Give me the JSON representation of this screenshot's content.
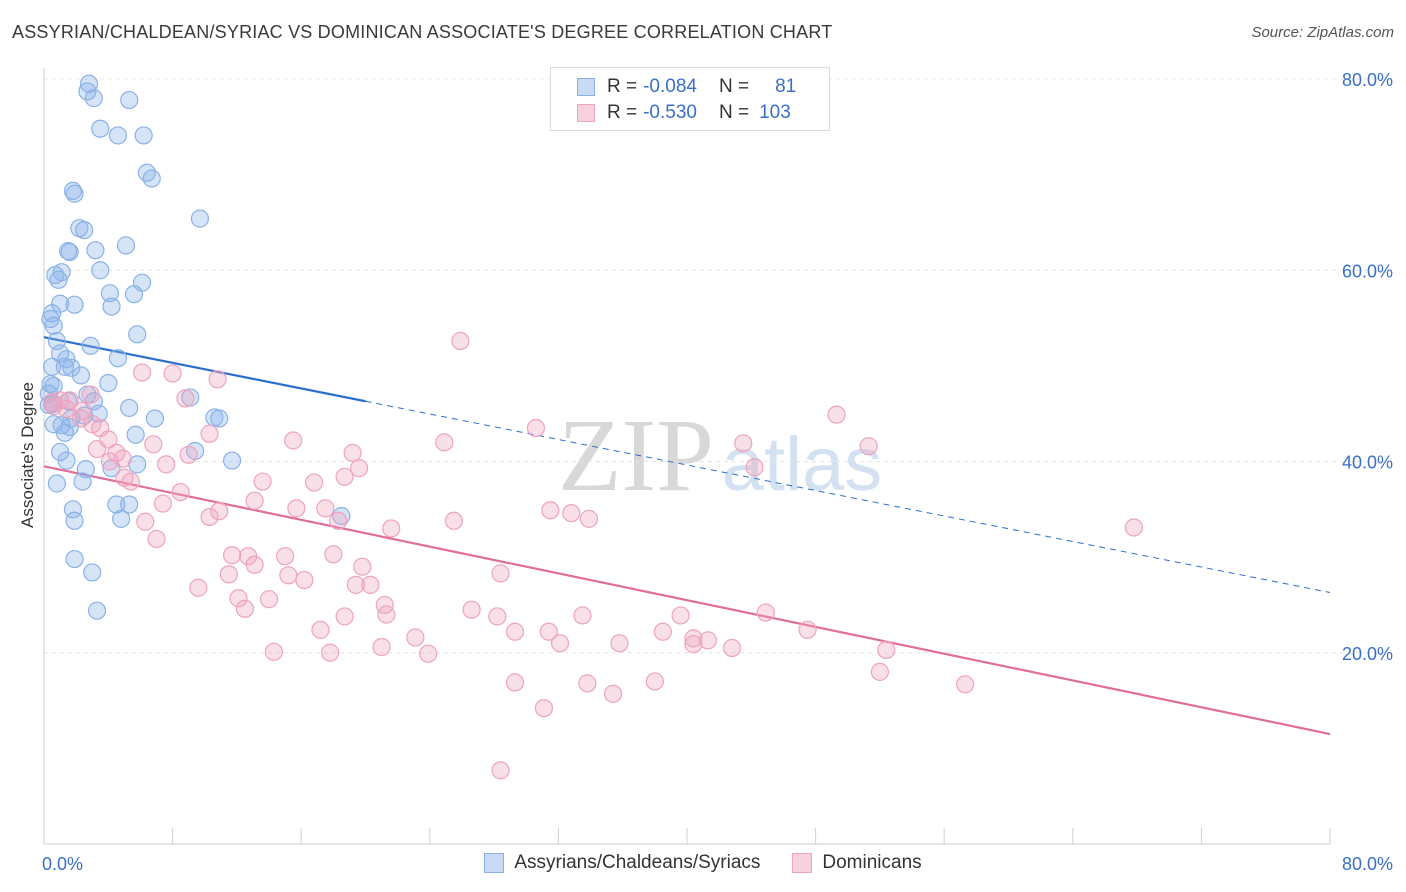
{
  "title": "ASSYRIAN/CHALDEAN/SYRIAC VS DOMINICAN ASSOCIATE'S DEGREE CORRELATION CHART",
  "source": "Source: ZipAtlas.com",
  "watermark": {
    "zip": "ZIP",
    "atlas": "atlas"
  },
  "legend_top": {
    "rows": [
      {
        "r_label": "R =",
        "r_value": "-0.084",
        "n_label": "N =",
        "n_value": "81",
        "color": "#8ab2e8",
        "fill": "#c9daf6"
      },
      {
        "r_label": "R =",
        "r_value": "-0.530",
        "n_label": "N =",
        "n_value": "103",
        "color": "#eea3be",
        "fill": "#f9d0de"
      }
    ]
  },
  "legend_bottom": [
    {
      "label": "Assyrians/Chaldeans/Syriacs",
      "color": "#8ab2e8",
      "fill": "#c9daf6"
    },
    {
      "label": "Dominicans",
      "color": "#eea3be",
      "fill": "#f9d0de"
    }
  ],
  "chart_data": {
    "type": "scatter",
    "title": "ASSYRIAN/CHALDEAN/SYRIAC VS DOMINICAN ASSOCIATE'S DEGREE CORRELATION CHART",
    "xlabel": "",
    "ylabel": "Associate's Degree",
    "xlim": [
      0,
      80
    ],
    "ylim": [
      0,
      80
    ],
    "x_tick_labels": [
      "0.0%",
      "80.0%"
    ],
    "y_ticks": [
      20,
      40,
      60,
      80
    ],
    "y_tick_labels": [
      "20.0%",
      "40.0%",
      "60.0%",
      "80.0%"
    ],
    "grid": true,
    "legend_position": "top-center",
    "series": [
      {
        "name": "Assyrians/Chaldeans/Syriacs",
        "color": "#8ab2e8",
        "line_color": "#2b6fce",
        "trend": {
          "x": [
            0,
            20
          ],
          "y": [
            53.0,
            46.3
          ],
          "dashed_to": [
            80,
            26.3
          ]
        },
        "points": [
          [
            2.8,
            79.5
          ],
          [
            2.7,
            78.7
          ],
          [
            3.1,
            78.0
          ],
          [
            5.3,
            77.8
          ],
          [
            3.5,
            74.8
          ],
          [
            4.6,
            74.1
          ],
          [
            6.2,
            74.1
          ],
          [
            6.4,
            70.2
          ],
          [
            6.7,
            69.6
          ],
          [
            1.8,
            68.3
          ],
          [
            1.9,
            68.0
          ],
          [
            9.7,
            65.4
          ],
          [
            2.2,
            64.4
          ],
          [
            2.5,
            64.2
          ],
          [
            5.1,
            62.6
          ],
          [
            1.5,
            62.0
          ],
          [
            1.6,
            61.9
          ],
          [
            3.2,
            62.1
          ],
          [
            3.5,
            60.0
          ],
          [
            0.7,
            59.5
          ],
          [
            1.1,
            59.8
          ],
          [
            0.9,
            59.0
          ],
          [
            6.1,
            58.7
          ],
          [
            4.1,
            57.6
          ],
          [
            5.6,
            57.5
          ],
          [
            1.0,
            56.5
          ],
          [
            1.9,
            56.4
          ],
          [
            4.2,
            56.2
          ],
          [
            0.5,
            55.5
          ],
          [
            0.4,
            54.9
          ],
          [
            0.6,
            54.2
          ],
          [
            5.8,
            53.3
          ],
          [
            0.8,
            52.6
          ],
          [
            2.9,
            52.1
          ],
          [
            1.0,
            51.3
          ],
          [
            1.4,
            50.7
          ],
          [
            4.6,
            50.8
          ],
          [
            0.5,
            49.9
          ],
          [
            1.3,
            49.9
          ],
          [
            1.7,
            49.8
          ],
          [
            2.3,
            49.0
          ],
          [
            0.4,
            48.1
          ],
          [
            4.0,
            48.2
          ],
          [
            0.6,
            47.9
          ],
          [
            2.7,
            47.0
          ],
          [
            9.1,
            46.7
          ],
          [
            3.1,
            46.3
          ],
          [
            0.5,
            46.0
          ],
          [
            5.3,
            45.6
          ],
          [
            3.4,
            45.0
          ],
          [
            1.7,
            44.5
          ],
          [
            2.5,
            44.8
          ],
          [
            10.6,
            44.6
          ],
          [
            6.9,
            44.5
          ],
          [
            10.9,
            44.5
          ],
          [
            1.1,
            43.8
          ],
          [
            1.6,
            43.6
          ],
          [
            1.3,
            43.0
          ],
          [
            5.7,
            42.8
          ],
          [
            9.4,
            41.1
          ],
          [
            1.0,
            41.0
          ],
          [
            4.2,
            39.3
          ],
          [
            1.4,
            40.1
          ],
          [
            11.7,
            40.1
          ],
          [
            5.8,
            39.7
          ],
          [
            2.6,
            39.2
          ],
          [
            0.8,
            37.7
          ],
          [
            2.4,
            37.9
          ],
          [
            4.5,
            35.5
          ],
          [
            5.3,
            35.5
          ],
          [
            1.8,
            35.0
          ],
          [
            4.8,
            34.0
          ],
          [
            18.5,
            34.3
          ],
          [
            1.9,
            33.8
          ],
          [
            1.9,
            29.8
          ],
          [
            3.0,
            28.4
          ],
          [
            3.3,
            24.4
          ],
          [
            0.3,
            47.1
          ],
          [
            0.3,
            45.9
          ],
          [
            1.5,
            46.3
          ],
          [
            0.6,
            43.9
          ]
        ]
      },
      {
        "name": "Dominicans",
        "color": "#eea3be",
        "line_color": "#e06d9a",
        "trend": {
          "x": [
            0,
            80
          ],
          "y": [
            39.5,
            11.5
          ]
        },
        "points": [
          [
            25.9,
            52.6
          ],
          [
            0.5,
            46.2
          ],
          [
            1.0,
            46.4
          ],
          [
            1.6,
            46.4
          ],
          [
            0.6,
            45.8
          ],
          [
            1.4,
            45.5
          ],
          [
            2.4,
            45.3
          ],
          [
            2.9,
            47.0
          ],
          [
            6.1,
            49.3
          ],
          [
            8.0,
            49.2
          ],
          [
            10.8,
            48.6
          ],
          [
            8.8,
            46.6
          ],
          [
            2.3,
            44.5
          ],
          [
            3.0,
            43.9
          ],
          [
            3.5,
            43.5
          ],
          [
            4.0,
            42.3
          ],
          [
            6.8,
            41.8
          ],
          [
            10.3,
            42.9
          ],
          [
            15.5,
            42.2
          ],
          [
            19.2,
            40.9
          ],
          [
            24.9,
            42.0
          ],
          [
            30.6,
            43.5
          ],
          [
            43.5,
            41.9
          ],
          [
            49.3,
            44.9
          ],
          [
            51.3,
            41.6
          ],
          [
            3.3,
            41.3
          ],
          [
            4.5,
            40.9
          ],
          [
            4.1,
            40.0
          ],
          [
            9.0,
            40.7
          ],
          [
            7.6,
            39.7
          ],
          [
            13.6,
            37.9
          ],
          [
            16.8,
            37.8
          ],
          [
            18.7,
            38.4
          ],
          [
            19.6,
            39.3
          ],
          [
            44.2,
            39.4
          ],
          [
            5.0,
            38.3
          ],
          [
            5.4,
            37.9
          ],
          [
            8.5,
            36.8
          ],
          [
            7.4,
            35.6
          ],
          [
            13.1,
            35.9
          ],
          [
            15.7,
            35.1
          ],
          [
            17.5,
            35.1
          ],
          [
            10.3,
            34.2
          ],
          [
            10.9,
            34.8
          ],
          [
            6.3,
            33.7
          ],
          [
            18.3,
            33.8
          ],
          [
            21.6,
            33.0
          ],
          [
            25.5,
            33.8
          ],
          [
            31.5,
            34.9
          ],
          [
            32.8,
            34.6
          ],
          [
            33.9,
            34.0
          ],
          [
            67.8,
            33.1
          ],
          [
            7.0,
            31.9
          ],
          [
            11.7,
            30.2
          ],
          [
            12.7,
            30.1
          ],
          [
            15.0,
            30.1
          ],
          [
            18.0,
            30.3
          ],
          [
            13.1,
            29.2
          ],
          [
            19.8,
            29.0
          ],
          [
            28.4,
            28.3
          ],
          [
            11.5,
            28.2
          ],
          [
            15.2,
            28.1
          ],
          [
            16.2,
            27.6
          ],
          [
            9.6,
            26.8
          ],
          [
            19.4,
            27.1
          ],
          [
            12.1,
            25.7
          ],
          [
            14.0,
            25.6
          ],
          [
            12.5,
            24.6
          ],
          [
            21.2,
            25.0
          ],
          [
            21.3,
            24.0
          ],
          [
            26.6,
            24.5
          ],
          [
            28.2,
            23.8
          ],
          [
            18.7,
            23.8
          ],
          [
            33.5,
            23.9
          ],
          [
            39.6,
            23.9
          ],
          [
            44.9,
            24.2
          ],
          [
            17.2,
            22.4
          ],
          [
            29.3,
            22.2
          ],
          [
            31.4,
            22.2
          ],
          [
            38.5,
            22.2
          ],
          [
            40.4,
            21.5
          ],
          [
            41.3,
            21.3
          ],
          [
            47.5,
            22.4
          ],
          [
            23.1,
            21.6
          ],
          [
            32.1,
            21.0
          ],
          [
            35.8,
            21.0
          ],
          [
            40.4,
            20.9
          ],
          [
            42.8,
            20.5
          ],
          [
            21.0,
            20.6
          ],
          [
            14.3,
            20.1
          ],
          [
            17.8,
            20.0
          ],
          [
            23.9,
            19.9
          ],
          [
            52.4,
            20.3
          ],
          [
            52.0,
            18.0
          ],
          [
            57.3,
            16.7
          ],
          [
            29.3,
            16.9
          ],
          [
            33.8,
            16.8
          ],
          [
            35.4,
            15.7
          ],
          [
            38.0,
            17.0
          ],
          [
            31.1,
            14.2
          ],
          [
            28.4,
            7.7
          ],
          [
            20.3,
            27.1
          ],
          [
            4.9,
            40.3
          ]
        ]
      }
    ]
  }
}
